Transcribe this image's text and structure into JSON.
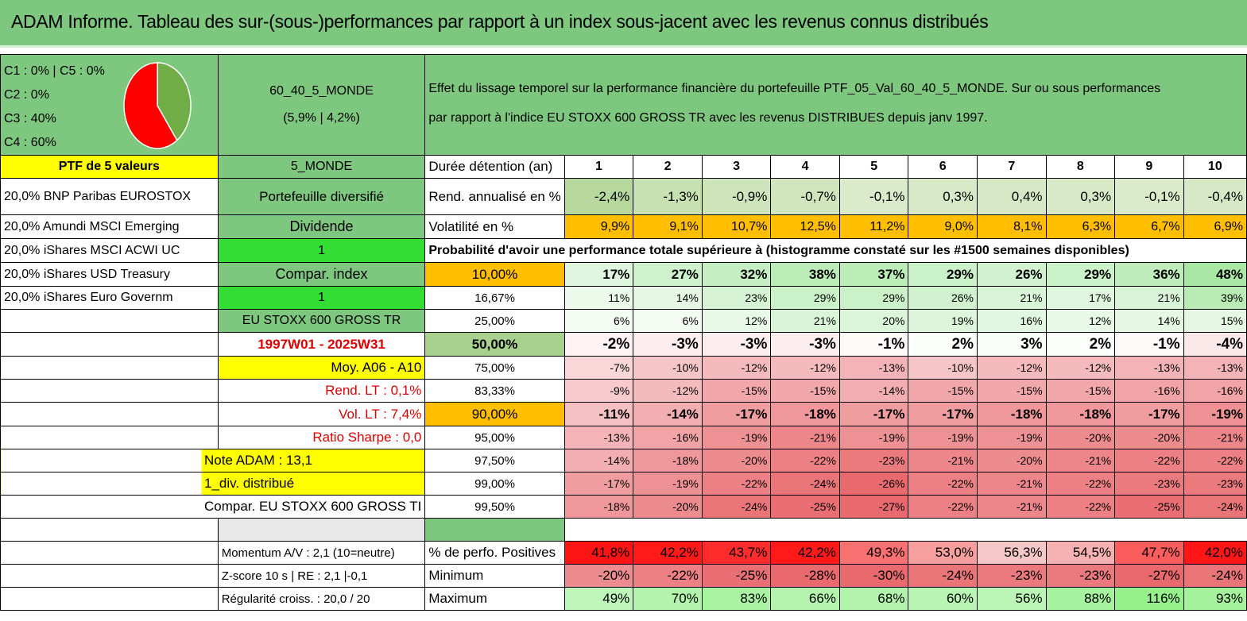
{
  "header": {
    "title": "ADAM Informe. Tableau des sur-(sous-)performances par rapport à un index sous-jacent avec les revenus connus distribués"
  },
  "allocation": {
    "labels": [
      "C1 : 0% | C5 : 0%",
      "C2 : 0%",
      "C3 : 40%",
      "C4 : 60%"
    ],
    "pie": [
      {
        "name": "C3",
        "value": 40,
        "color": "#70ad47"
      },
      {
        "name": "C4",
        "value": 60,
        "color": "#ff0000"
      }
    ]
  },
  "portfolio": {
    "name": "60_40_5_MONDE",
    "stats": "(5,9% | 4,2%)",
    "description_line1": "Effet du lissage temporel sur la performance financière du portefeuille PTF_05_Val_60_40_5_MONDE. Sur ou sous performances",
    "description_line2": "par rapport à l'indice EU STOXX 600 GROSS TR avec les revenus DISTRIBUES depuis janv 1997.",
    "ptf_label": "PTF de 5 valeurs",
    "short_name": "5_MONDE"
  },
  "holdings": [
    "20,0% BNP Paribas EUROSTOX",
    "20,0% Amundi MSCI Emerging",
    "20,0% iShares MSCI ACWI UC",
    "20,0% iShares USD Treasury",
    "20,0% iShares Euro Governm"
  ],
  "info": {
    "diversified": "Portefeuille diversifié",
    "dividend": "Dividende",
    "one_a": "1",
    "compar_index": "Compar. index",
    "one_b": "1",
    "index_name": "EU STOXX 600 GROSS TR",
    "period": "1997W01 - 2025W31",
    "moy": "Moy. A06 - A10",
    "rend_lt": "Rend. LT : 0,1%",
    "vol_lt": "Vol. LT : 7,4%",
    "sharpe": "Ratio Sharpe : 0,0",
    "note": "Note ADAM : 13,1",
    "div": "1_div. distribué",
    "compar": "Compar. EU STOXX 600 GROSS TI",
    "momentum": "Momentum A/V : 2,1 (10=neutre)",
    "zscore": "Z-score 10 s | RE : 2,1 |-0,1",
    "regularite": "Régularité croiss. : 20,0 / 20"
  },
  "table": {
    "duration_label": "Durée détention (an)",
    "years": [
      "1",
      "2",
      "3",
      "4",
      "5",
      "6",
      "7",
      "8",
      "9",
      "10"
    ],
    "rend_label": "Rend. annualisé en %",
    "rend": [
      "-2,4%",
      "-1,3%",
      "-0,9%",
      "-0,7%",
      "-0,1%",
      "0,3%",
      "0,4%",
      "0,3%",
      "-0,1%",
      "-0,4%"
    ],
    "vol_label": "Volatilité en %",
    "vol": [
      "9,9%",
      "9,1%",
      "10,7%",
      "12,5%",
      "11,2%",
      "9,0%",
      "8,1%",
      "6,3%",
      "6,7%",
      "6,9%"
    ],
    "prob_label": "Probabilité d'avoir une performance totale supérieure à (histogramme constaté sur les #1500 semaines disponibles)",
    "quantiles": [
      {
        "p": "10,00%",
        "vals": [
          "17%",
          "27%",
          "32%",
          "38%",
          "37%",
          "29%",
          "26%",
          "29%",
          "36%",
          "48%"
        ]
      },
      {
        "p": "16,67%",
        "vals": [
          "11%",
          "14%",
          "23%",
          "29%",
          "29%",
          "26%",
          "21%",
          "17%",
          "21%",
          "39%"
        ]
      },
      {
        "p": "25,00%",
        "vals": [
          "6%",
          "6%",
          "12%",
          "21%",
          "20%",
          "19%",
          "16%",
          "12%",
          "14%",
          "15%"
        ]
      },
      {
        "p": "50,00%",
        "vals": [
          "-2%",
          "-3%",
          "-3%",
          "-3%",
          "-1%",
          "2%",
          "3%",
          "2%",
          "-1%",
          "-4%"
        ]
      },
      {
        "p": "75,00%",
        "vals": [
          "-7%",
          "-10%",
          "-12%",
          "-12%",
          "-13%",
          "-10%",
          "-12%",
          "-12%",
          "-13%",
          "-13%"
        ]
      },
      {
        "p": "83,33%",
        "vals": [
          "-9%",
          "-12%",
          "-15%",
          "-15%",
          "-14%",
          "-15%",
          "-15%",
          "-15%",
          "-16%",
          "-16%"
        ]
      },
      {
        "p": "90,00%",
        "vals": [
          "-11%",
          "-14%",
          "-17%",
          "-18%",
          "-17%",
          "-17%",
          "-18%",
          "-18%",
          "-17%",
          "-19%"
        ]
      },
      {
        "p": "95,00%",
        "vals": [
          "-13%",
          "-16%",
          "-19%",
          "-21%",
          "-19%",
          "-19%",
          "-19%",
          "-20%",
          "-20%",
          "-21%"
        ]
      },
      {
        "p": "97,50%",
        "vals": [
          "-14%",
          "-18%",
          "-20%",
          "-22%",
          "-23%",
          "-21%",
          "-20%",
          "-21%",
          "-22%",
          "-22%"
        ]
      },
      {
        "p": "99,00%",
        "vals": [
          "-17%",
          "-19%",
          "-22%",
          "-24%",
          "-26%",
          "-22%",
          "-21%",
          "-22%",
          "-23%",
          "-23%"
        ]
      },
      {
        "p": "99,50%",
        "vals": [
          "-18%",
          "-20%",
          "-24%",
          "-25%",
          "-27%",
          "-22%",
          "-21%",
          "-22%",
          "-25%",
          "-24%"
        ]
      }
    ],
    "pos_label": "% de perfo. Positives",
    "pos": [
      "41,8%",
      "42,2%",
      "43,7%",
      "42,2%",
      "49,3%",
      "53,0%",
      "56,3%",
      "54,5%",
      "47,7%",
      "42,0%"
    ],
    "min_label": "Minimum",
    "min": [
      "-20%",
      "-22%",
      "-25%",
      "-28%",
      "-30%",
      "-24%",
      "-23%",
      "-23%",
      "-27%",
      "-24%"
    ],
    "max_label": "Maximum",
    "max": [
      "49%",
      "70%",
      "83%",
      "66%",
      "68%",
      "60%",
      "56%",
      "88%",
      "116%",
      "93%"
    ]
  }
}
